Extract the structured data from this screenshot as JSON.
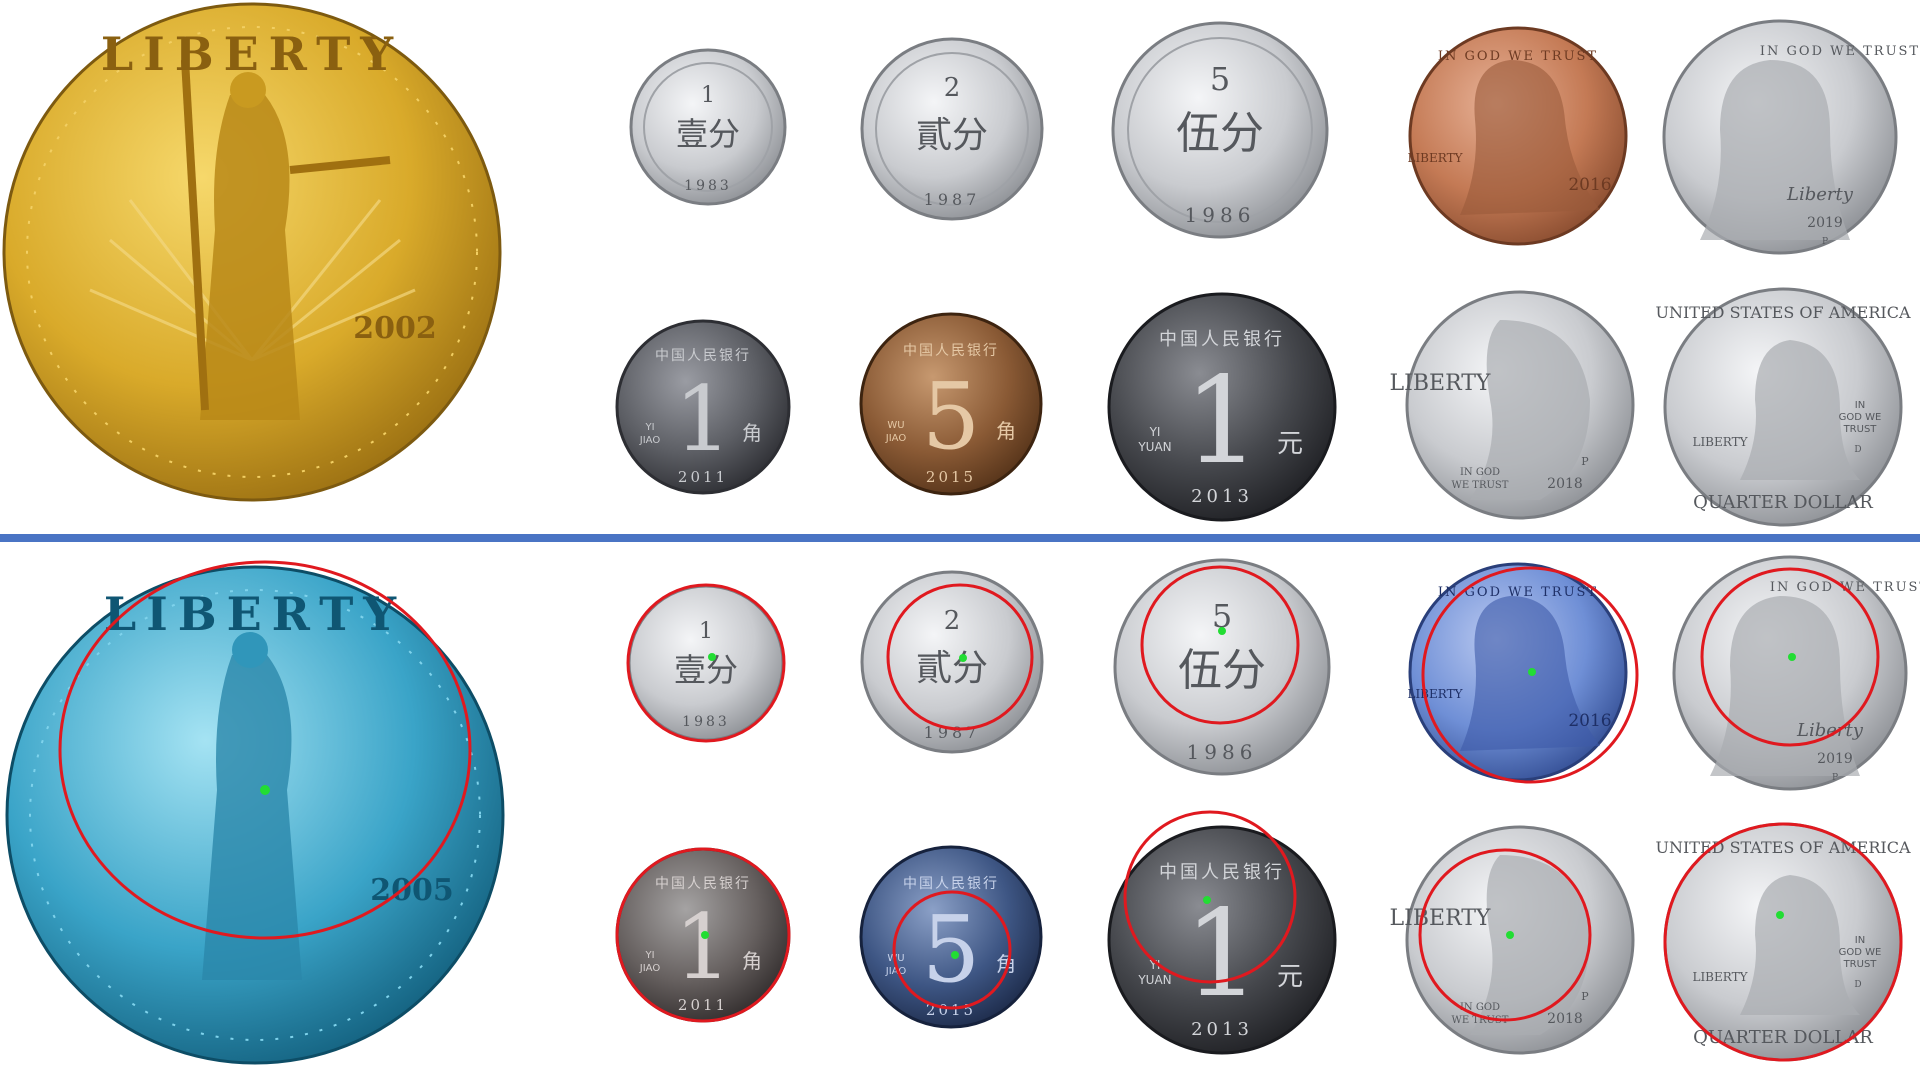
{
  "colors": {
    "divider": "#4a74c4",
    "detection_circle": "#e0191f",
    "center_point": "#22dd33",
    "gold": "#d9aa2a",
    "silver": "#c9cbcf",
    "copper": "#c47a55",
    "brass": "#8a5a35",
    "dark_steel": "#4a4b50",
    "cyan_tint": "#3aa4c8",
    "blue_tint": "#6f8fd6"
  },
  "coins": {
    "eagle": {
      "top_text": "LIBERTY",
      "year": "2002",
      "year_bottom": "2005"
    },
    "fen1": {
      "digit": "1",
      "chars": "壹分",
      "year": "1983"
    },
    "fen2": {
      "digit": "2",
      "chars": "貳分",
      "year": "1987"
    },
    "fen5": {
      "digit": "5",
      "chars": "伍分",
      "year": "1986"
    },
    "jiao1": {
      "rim": "中国人民银行",
      "big": "1",
      "pinyin_a": "YI",
      "pinyin_b": "JIAO",
      "unit": "角",
      "year": "2011"
    },
    "jiao5": {
      "rim": "中国人民银行",
      "big": "5",
      "pinyin_a": "WU",
      "pinyin_b": "JIAO",
      "unit": "角",
      "year": "2015"
    },
    "yuan1": {
      "rim": "中国人民银行",
      "big": "1",
      "pinyin_a": "YI",
      "pinyin_b": "YUAN",
      "unit": "元",
      "year": "2013"
    },
    "penny": {
      "motto": "IN GOD WE TRUST",
      "liberty": "LIBERTY",
      "year": "2016"
    },
    "nickel": {
      "motto": "IN GOD WE TRUST",
      "script": "Liberty",
      "year": "2019",
      "mint": "P"
    },
    "dime": {
      "liberty": "LIBERTY",
      "motto_a": "IN GOD",
      "motto_b": "WE TRUST",
      "mint": "P",
      "year": "2018"
    },
    "quarter": {
      "country": "UNITED STATES OF AMERICA",
      "motto_a": "IN",
      "motto_b": "GOD WE",
      "motto_c": "TRUST",
      "liberty": "LIBERTY",
      "denomination": "QUARTER DOLLAR",
      "mint": "D"
    }
  }
}
